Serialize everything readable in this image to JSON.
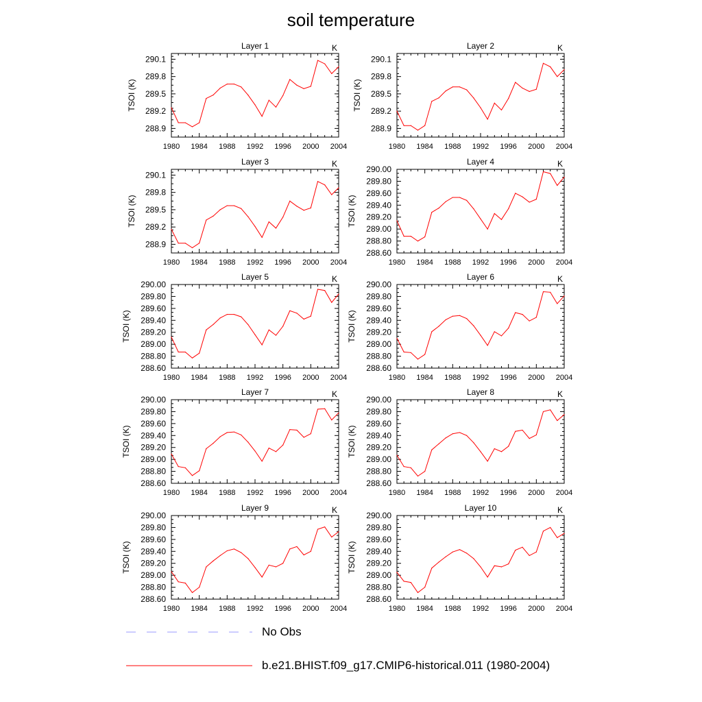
{
  "figure": {
    "title": "soil temperature"
  },
  "legend": [
    {
      "label": "No Obs",
      "color": "#9a9aff",
      "style": "dashed"
    },
    {
      "label": "b.e21.BHIST.f09_g17.CMIP6-historical.011 (1980-2004)",
      "color": "#ff0000",
      "style": "solid"
    }
  ],
  "chart_data": [
    {
      "type": "line",
      "title": "Layer 1",
      "unit": "K",
      "ylabel": "TSOI  (K)",
      "xlim": [
        1980,
        2004
      ],
      "ylim": [
        288.75,
        290.2
      ],
      "xticks": [
        1980,
        1984,
        1988,
        1992,
        1996,
        2000,
        2004
      ],
      "yticks": [
        288.9,
        289.2,
        289.5,
        289.8,
        290.1
      ],
      "ytick_labels": [
        "288.9",
        "289.2",
        "289.5",
        "289.8",
        "290.1"
      ],
      "x": [
        1980,
        1981,
        1982,
        1983,
        1984,
        1985,
        1986,
        1987,
        1988,
        1989,
        1990,
        1991,
        1992,
        1993,
        1994,
        1995,
        1996,
        1997,
        1998,
        1999,
        2000,
        2001,
        2002,
        2003,
        2004
      ],
      "series": [
        {
          "color": "#ff0000",
          "values": [
            289.26,
            289.0,
            289.0,
            288.93,
            289.0,
            289.42,
            289.48,
            289.6,
            289.67,
            289.67,
            289.62,
            289.48,
            289.31,
            289.11,
            289.39,
            289.27,
            289.47,
            289.75,
            289.65,
            289.59,
            289.63,
            290.08,
            290.02,
            289.85,
            289.97
          ]
        }
      ]
    },
    {
      "type": "line",
      "title": "Layer 2",
      "unit": "K",
      "ylabel": "TSOI  (K)",
      "xlim": [
        1980,
        2004
      ],
      "ylim": [
        288.75,
        290.2
      ],
      "xticks": [
        1980,
        1984,
        1988,
        1992,
        1996,
        2000,
        2004
      ],
      "yticks": [
        288.9,
        289.2,
        289.5,
        289.8,
        290.1
      ],
      "ytick_labels": [
        "288.9",
        "289.2",
        "289.5",
        "289.8",
        "290.1"
      ],
      "x": [
        1980,
        1981,
        1982,
        1983,
        1984,
        1985,
        1986,
        1987,
        1988,
        1989,
        1990,
        1991,
        1992,
        1993,
        1994,
        1995,
        1996,
        1997,
        1998,
        1999,
        2000,
        2001,
        2002,
        2003,
        2004
      ],
      "series": [
        {
          "color": "#ff0000",
          "values": [
            289.2,
            288.95,
            288.95,
            288.87,
            288.95,
            289.37,
            289.43,
            289.55,
            289.62,
            289.62,
            289.57,
            289.43,
            289.26,
            289.06,
            289.34,
            289.22,
            289.42,
            289.7,
            289.6,
            289.54,
            289.58,
            290.03,
            289.97,
            289.8,
            289.92
          ]
        }
      ]
    },
    {
      "type": "line",
      "title": "Layer 3",
      "unit": "K",
      "ylabel": "TSOI  (K)",
      "xlim": [
        1980,
        2004
      ],
      "ylim": [
        288.75,
        290.2
      ],
      "xticks": [
        1980,
        1984,
        1988,
        1992,
        1996,
        2000,
        2004
      ],
      "yticks": [
        288.9,
        289.2,
        289.5,
        289.8,
        290.1
      ],
      "ytick_labels": [
        "288.9",
        "289.2",
        "289.5",
        "289.8",
        "290.1"
      ],
      "x": [
        1980,
        1981,
        1982,
        1983,
        1984,
        1985,
        1986,
        1987,
        1988,
        1989,
        1990,
        1991,
        1992,
        1993,
        1994,
        1995,
        1996,
        1997,
        1998,
        1999,
        2000,
        2001,
        2002,
        2003,
        2004
      ],
      "series": [
        {
          "color": "#ff0000",
          "values": [
            289.16,
            288.92,
            288.92,
            288.84,
            288.92,
            289.32,
            289.39,
            289.5,
            289.57,
            289.57,
            289.52,
            289.38,
            289.21,
            289.02,
            289.29,
            289.18,
            289.37,
            289.65,
            289.56,
            289.49,
            289.53,
            289.99,
            289.93,
            289.76,
            289.88
          ]
        }
      ]
    },
    {
      "type": "line",
      "title": "Layer 4",
      "unit": "K",
      "ylabel": "TSOI  (K)",
      "xlim": [
        1980,
        2004
      ],
      "ylim": [
        288.6,
        290.0
      ],
      "xticks": [
        1980,
        1984,
        1988,
        1992,
        1996,
        2000,
        2004
      ],
      "yticks": [
        288.6,
        288.8,
        289.0,
        289.2,
        289.4,
        289.6,
        289.8,
        290.0
      ],
      "ytick_labels": [
        "288.60",
        "288.80",
        "289.00",
        "289.20",
        "289.40",
        "289.60",
        "289.80",
        "290.00"
      ],
      "x": [
        1980,
        1981,
        1982,
        1983,
        1984,
        1985,
        1986,
        1987,
        1988,
        1989,
        1990,
        1991,
        1992,
        1993,
        1994,
        1995,
        1996,
        1997,
        1998,
        1999,
        2000,
        2001,
        2002,
        2003,
        2004
      ],
      "series": [
        {
          "color": "#ff0000",
          "values": [
            289.14,
            288.88,
            288.88,
            288.8,
            288.87,
            289.28,
            289.35,
            289.46,
            289.53,
            289.53,
            289.48,
            289.34,
            289.17,
            289.0,
            289.26,
            289.16,
            289.34,
            289.6,
            289.54,
            289.45,
            289.5,
            289.96,
            289.93,
            289.73,
            289.87
          ]
        }
      ]
    },
    {
      "type": "line",
      "title": "Layer 5",
      "unit": "K",
      "ylabel": "TSOI  (K)",
      "xlim": [
        1980,
        2004
      ],
      "ylim": [
        288.6,
        290.0
      ],
      "xticks": [
        1980,
        1984,
        1988,
        1992,
        1996,
        2000,
        2004
      ],
      "yticks": [
        288.6,
        288.8,
        289.0,
        289.2,
        289.4,
        289.6,
        289.8,
        290.0
      ],
      "ytick_labels": [
        "288.60",
        "288.80",
        "289.00",
        "289.20",
        "289.40",
        "289.60",
        "289.80",
        "290.00"
      ],
      "x": [
        1980,
        1981,
        1982,
        1983,
        1984,
        1985,
        1986,
        1987,
        1988,
        1989,
        1990,
        1991,
        1992,
        1993,
        1994,
        1995,
        1996,
        1997,
        1998,
        1999,
        2000,
        2001,
        2002,
        2003,
        2004
      ],
      "series": [
        {
          "color": "#ff0000",
          "values": [
            289.12,
            288.87,
            288.87,
            288.77,
            288.85,
            289.24,
            289.33,
            289.44,
            289.5,
            289.5,
            289.46,
            289.33,
            289.16,
            288.99,
            289.24,
            289.15,
            289.3,
            289.56,
            289.52,
            289.42,
            289.47,
            289.92,
            289.9,
            289.7,
            289.84
          ]
        }
      ]
    },
    {
      "type": "line",
      "title": "Layer 6",
      "unit": "K",
      "ylabel": "TSOI  (K)",
      "xlim": [
        1980,
        2004
      ],
      "ylim": [
        288.6,
        290.0
      ],
      "xticks": [
        1980,
        1984,
        1988,
        1992,
        1996,
        2000,
        2004
      ],
      "yticks": [
        288.6,
        288.8,
        289.0,
        289.2,
        289.4,
        289.6,
        289.8,
        290.0
      ],
      "ytick_labels": [
        "288.60",
        "288.80",
        "289.00",
        "289.20",
        "289.40",
        "289.60",
        "289.80",
        "290.00"
      ],
      "x": [
        1980,
        1981,
        1982,
        1983,
        1984,
        1985,
        1986,
        1987,
        1988,
        1989,
        1990,
        1991,
        1992,
        1993,
        1994,
        1995,
        1996,
        1997,
        1998,
        1999,
        2000,
        2001,
        2002,
        2003,
        2004
      ],
      "series": [
        {
          "color": "#ff0000",
          "values": [
            289.1,
            288.87,
            288.86,
            288.75,
            288.83,
            289.21,
            289.3,
            289.41,
            289.47,
            289.48,
            289.43,
            289.31,
            289.15,
            288.98,
            289.21,
            289.14,
            289.27,
            289.53,
            289.5,
            289.39,
            289.45,
            289.88,
            289.87,
            289.68,
            289.81
          ]
        }
      ]
    },
    {
      "type": "line",
      "title": "Layer 7",
      "unit": "K",
      "ylabel": "TSOI  (K)",
      "xlim": [
        1980,
        2004
      ],
      "ylim": [
        288.6,
        290.0
      ],
      "xticks": [
        1980,
        1984,
        1988,
        1992,
        1996,
        2000,
        2004
      ],
      "yticks": [
        288.6,
        288.8,
        289.0,
        289.2,
        289.4,
        289.6,
        289.8,
        290.0
      ],
      "ytick_labels": [
        "288.60",
        "288.80",
        "289.00",
        "289.20",
        "289.40",
        "289.60",
        "289.80",
        "290.00"
      ],
      "x": [
        1980,
        1981,
        1982,
        1983,
        1984,
        1985,
        1986,
        1987,
        1988,
        1989,
        1990,
        1991,
        1992,
        1993,
        1994,
        1995,
        1996,
        1997,
        1998,
        1999,
        2000,
        2001,
        2002,
        2003,
        2004
      ],
      "series": [
        {
          "color": "#ff0000",
          "values": [
            289.09,
            288.88,
            288.86,
            288.73,
            288.81,
            289.18,
            289.27,
            289.38,
            289.45,
            289.46,
            289.41,
            289.29,
            289.14,
            288.97,
            289.19,
            289.13,
            289.24,
            289.5,
            289.49,
            289.37,
            289.43,
            289.84,
            289.85,
            289.66,
            289.78
          ]
        }
      ]
    },
    {
      "type": "line",
      "title": "Layer 8",
      "unit": "K",
      "ylabel": "TSOI  (K)",
      "xlim": [
        1980,
        2004
      ],
      "ylim": [
        288.6,
        290.0
      ],
      "xticks": [
        1980,
        1984,
        1988,
        1992,
        1996,
        2000,
        2004
      ],
      "yticks": [
        288.6,
        288.8,
        289.0,
        289.2,
        289.4,
        289.6,
        289.8,
        290.0
      ],
      "ytick_labels": [
        "288.60",
        "288.80",
        "289.00",
        "289.20",
        "289.40",
        "289.60",
        "289.80",
        "290.00"
      ],
      "x": [
        1980,
        1981,
        1982,
        1983,
        1984,
        1985,
        1986,
        1987,
        1988,
        1989,
        1990,
        1991,
        1992,
        1993,
        1994,
        1995,
        1996,
        1997,
        1998,
        1999,
        2000,
        2001,
        2002,
        2003,
        2004
      ],
      "series": [
        {
          "color": "#ff0000",
          "values": [
            289.07,
            288.88,
            288.86,
            288.72,
            288.8,
            289.16,
            289.26,
            289.36,
            289.43,
            289.45,
            289.4,
            289.28,
            289.13,
            288.97,
            289.18,
            289.13,
            289.22,
            289.47,
            289.49,
            289.35,
            289.41,
            289.8,
            289.83,
            289.65,
            289.75
          ]
        }
      ]
    },
    {
      "type": "line",
      "title": "Layer 9",
      "unit": "K",
      "ylabel": "TSOI  (K)",
      "xlim": [
        1980,
        2004
      ],
      "ylim": [
        288.6,
        290.0
      ],
      "xticks": [
        1980,
        1984,
        1988,
        1992,
        1996,
        2000,
        2004
      ],
      "yticks": [
        288.6,
        288.8,
        289.0,
        289.2,
        289.4,
        289.6,
        289.8,
        290.0
      ],
      "ytick_labels": [
        "288.60",
        "288.80",
        "289.00",
        "289.20",
        "289.40",
        "289.60",
        "289.80",
        "290.00"
      ],
      "x": [
        1980,
        1981,
        1982,
        1983,
        1984,
        1985,
        1986,
        1987,
        1988,
        1989,
        1990,
        1991,
        1992,
        1993,
        1994,
        1995,
        1996,
        1997,
        1998,
        1999,
        2000,
        2001,
        2002,
        2003,
        2004
      ],
      "series": [
        {
          "color": "#ff0000",
          "values": [
            289.06,
            288.89,
            288.87,
            288.71,
            288.8,
            289.14,
            289.24,
            289.33,
            289.41,
            289.44,
            289.38,
            289.28,
            289.13,
            288.97,
            289.17,
            289.14,
            289.2,
            289.44,
            289.48,
            289.34,
            289.4,
            289.77,
            289.81,
            289.64,
            289.73
          ]
        }
      ]
    },
    {
      "type": "line",
      "title": "Layer 10",
      "unit": "K",
      "ylabel": "TSOI  (K)",
      "xlim": [
        1980,
        2004
      ],
      "ylim": [
        288.6,
        290.0
      ],
      "xticks": [
        1980,
        1984,
        1988,
        1992,
        1996,
        2000,
        2004
      ],
      "yticks": [
        288.6,
        288.8,
        289.0,
        289.2,
        289.4,
        289.6,
        289.8,
        290.0
      ],
      "ytick_labels": [
        "288.60",
        "288.80",
        "289.00",
        "289.20",
        "289.40",
        "289.60",
        "289.80",
        "290.00"
      ],
      "x": [
        1980,
        1981,
        1982,
        1983,
        1984,
        1985,
        1986,
        1987,
        1988,
        1989,
        1990,
        1991,
        1992,
        1993,
        1994,
        1995,
        1996,
        1997,
        1998,
        1999,
        2000,
        2001,
        2002,
        2003,
        2004
      ],
      "series": [
        {
          "color": "#ff0000",
          "values": [
            289.05,
            288.9,
            288.88,
            288.71,
            288.8,
            289.12,
            289.22,
            289.31,
            289.39,
            289.43,
            289.37,
            289.28,
            289.14,
            288.97,
            289.16,
            289.14,
            289.19,
            289.42,
            289.47,
            289.33,
            289.39,
            289.74,
            289.8,
            289.63,
            289.7
          ]
        }
      ]
    }
  ]
}
